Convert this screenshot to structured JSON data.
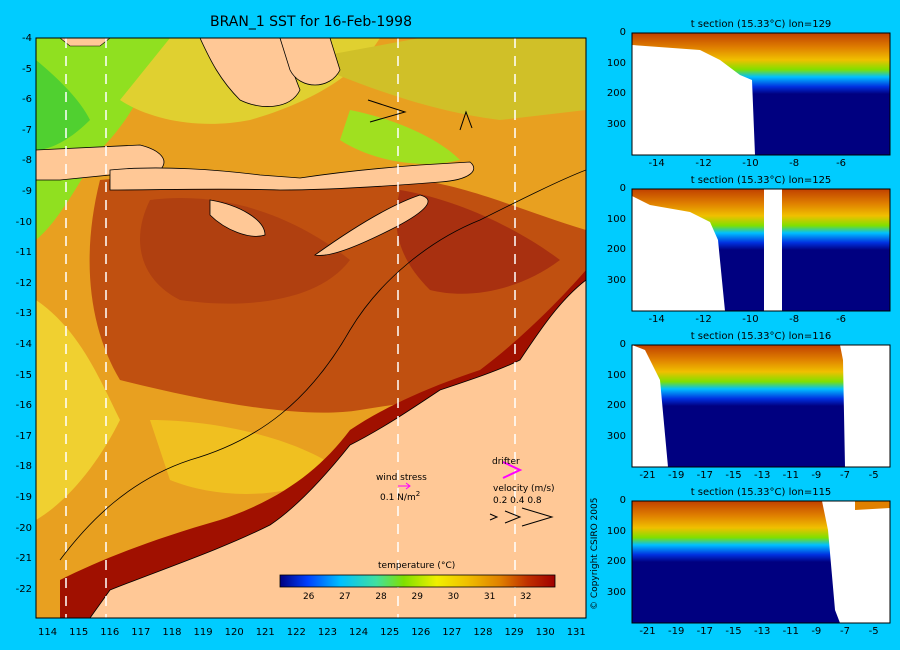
{
  "map": {
    "title": "BRAN_1 SST for 16-Feb-1998",
    "lat_labels": [
      "-4",
      "-5",
      "-6",
      "-7",
      "-8",
      "-9",
      "-10",
      "-11",
      "-12",
      "-13",
      "-14",
      "-15",
      "-16",
      "-17",
      "-18",
      "-19",
      "-20",
      "-21",
      "-22"
    ],
    "lon_labels": [
      "114",
      "115",
      "116",
      "117",
      "118",
      "119",
      "120",
      "121",
      "122",
      "123",
      "124",
      "125",
      "126",
      "127",
      "128",
      "129",
      "130",
      "131"
    ],
    "section_lons": [
      114.5,
      115.8,
      125.4,
      129.2
    ],
    "colors": {
      "background": "#00ccff",
      "land": "#ffc896",
      "hot": "#a01000",
      "warm": "#e07010",
      "mid": "#f0c020",
      "cool": "#90e020"
    }
  },
  "colorbar": {
    "label": "temperature (°C)",
    "ticks": [
      "26",
      "27",
      "28",
      "29",
      "30",
      "31",
      "32"
    ],
    "tick_values": [
      26,
      27,
      28,
      29,
      30,
      31,
      32
    ],
    "range": [
      25.2,
      32.8
    ],
    "stops": [
      "#000080",
      "#0040ff",
      "#00c0ff",
      "#40e0a0",
      "#80e000",
      "#f0f000",
      "#f0c000",
      "#e08000",
      "#c03000",
      "#a00000"
    ]
  },
  "legend": {
    "wind_stress": "wind stress",
    "wind_value": "0.1 N/m",
    "wind_exp": "2",
    "drifter": "drifter",
    "velocity": "velocity (m/s)",
    "velocity_scale": "0.2 0.4 0.8"
  },
  "copyright": "© Copyright CSIRO 2005",
  "sections": [
    {
      "title": "t section (15.33°C) lon=129",
      "x_ticks": [
        "-14",
        "-12",
        "-10",
        "-8",
        "-6"
      ],
      "x_values": [
        -14,
        -12,
        -10,
        -8,
        -6
      ],
      "xlim": [
        -15,
        -4
      ],
      "y_ticks": [
        "0",
        "100",
        "200",
        "300"
      ],
      "ylim": [
        0,
        400
      ]
    },
    {
      "title": "t section (15.33°C) lon=125",
      "x_ticks": [
        "-14",
        "-12",
        "-10",
        "-8",
        "-6"
      ],
      "x_values": [
        -14,
        -12,
        -10,
        -8,
        -6
      ],
      "xlim": [
        -15,
        -4
      ],
      "y_ticks": [
        "0",
        "100",
        "200",
        "300"
      ],
      "ylim": [
        0,
        400
      ]
    },
    {
      "title": "t section (15.33°C) lon=116",
      "x_ticks": [
        "-21",
        "-19",
        "-17",
        "-15",
        "-13",
        "-11",
        "-9",
        "-7",
        "-5"
      ],
      "x_values": [
        -21,
        -19,
        -17,
        -15,
        -13,
        -11,
        -9,
        -7,
        -5
      ],
      "xlim": [
        -22,
        -4
      ],
      "y_ticks": [
        "0",
        "100",
        "200",
        "300"
      ],
      "ylim": [
        0,
        400
      ]
    },
    {
      "title": "t section (15.33°C) lon=115",
      "x_ticks": [
        "-21",
        "-19",
        "-17",
        "-15",
        "-13",
        "-11",
        "-9",
        "-7",
        "-5"
      ],
      "x_values": [
        -21,
        -19,
        -17,
        -15,
        -13,
        -11,
        -9,
        -7,
        -5
      ],
      "xlim": [
        -22,
        -4
      ],
      "y_ticks": [
        "0",
        "100",
        "200",
        "300"
      ],
      "ylim": [
        0,
        400
      ]
    }
  ]
}
